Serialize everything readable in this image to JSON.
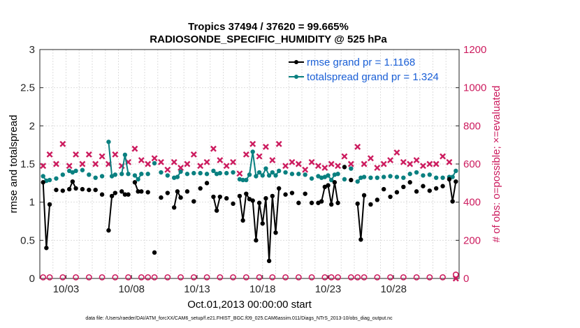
{
  "chart_data": {
    "type": "line",
    "title": "Tropics 37494 / 37620 = 99.665%",
    "subtitle": "RADIOSONDE_SPECIFIC_HUMIDITY @ 525 hPa",
    "xlabel": "Oct.01,2013 00:00:00 start",
    "ylabel": "rmse and totalspread",
    "y2label": "# of obs: o=possible; ×=evaluated",
    "footer": "data file: /Users/raeder/DAI/ATM_forcXX/CAM6_setup/f.e21.FHIST_BGC.f09_025.CAM6assim.011/Diags_NTrS_2013-10/obs_diag_output.nc",
    "xlim": [
      1,
      33
    ],
    "ylim": [
      0,
      3
    ],
    "y2lim": [
      0,
      1200
    ],
    "x_ticks": [
      3,
      8,
      13,
      18,
      23,
      28
    ],
    "x_tick_labels": [
      "10/03",
      "10/08",
      "10/13",
      "10/18",
      "10/23",
      "10/28"
    ],
    "y_ticks": [
      "0",
      "0.5",
      "1",
      "1.5",
      "2",
      "2.5",
      "3"
    ],
    "y2_ticks": [
      "0",
      "200",
      "400",
      "600",
      "800",
      "1000",
      "1200"
    ],
    "grid": true,
    "legend_position": "top-right",
    "series": [
      {
        "name": "rmse grand pr = 1.1168",
        "color": "#000000",
        "axis": "left",
        "x": [
          1.25,
          1.5,
          1.75,
          2.25,
          2.75,
          3.25,
          3.5,
          3.75,
          4.25,
          4.75,
          5.25,
          5.75,
          6.25,
          6.5,
          6.75,
          7.25,
          7.5,
          7.75,
          8.25,
          8.5,
          8.75,
          9.25,
          9.75,
          10.25,
          10.75,
          11.25,
          11.5,
          11.75,
          12.25,
          12.75,
          13.25,
          13.75,
          14.25,
          14.5,
          14.75,
          15.25,
          15.75,
          16.25,
          16.5,
          16.75,
          17.0,
          17.25,
          17.5,
          17.75,
          18.0,
          18.25,
          18.5,
          18.75,
          19.0,
          19.25,
          19.75,
          20.25,
          20.75,
          21.25,
          21.75,
          22.25,
          22.5,
          22.75,
          23.0,
          23.25,
          23.5,
          23.75,
          24.25,
          24.75,
          25.25,
          25.5,
          25.75,
          26.25,
          26.75,
          27.25,
          27.75,
          28.25,
          28.75,
          29.25,
          29.75,
          30.25,
          30.75,
          31.25,
          31.75,
          32.25,
          32.5,
          32.75
        ],
        "values": [
          1.26,
          0.4,
          0.97,
          1.16,
          1.15,
          1.17,
          1.27,
          1.18,
          1.17,
          1.16,
          1.16,
          1.1,
          0.63,
          1.08,
          1.12,
          1.14,
          1.1,
          1.1,
          1.26,
          1.14,
          1.14,
          1.13,
          0.34,
          1.06,
          1.12,
          0.93,
          1.14,
          1.06,
          1.14,
          1.01,
          1.18,
          1.25,
          1.07,
          0.89,
          1.07,
          1.05,
          0.98,
          1.08,
          0.76,
          1.11,
          1.04,
          1.02,
          0.5,
          0.99,
          0.72,
          1.05,
          0.23,
          1.08,
          0.6,
          1.18,
          1.1,
          1.12,
          0.99,
          1.11,
          0.99,
          0.99,
          1.01,
          1.2,
          1.22,
          0.97,
          1.26,
          0.99,
          1.46,
          1.29,
          0.98,
          0.51,
          1.09,
          0.97,
          1.03,
          1.17,
          1.07,
          1.13,
          1.2,
          1.26,
          1.14,
          1.21,
          1.15,
          1.18,
          1.21,
          1.3,
          1.01,
          1.27
        ]
      },
      {
        "name": "totalspread grand pr = 1.324",
        "color": "#0a8080",
        "axis": "left",
        "x": [
          1.25,
          1.5,
          1.75,
          2.25,
          2.75,
          3.25,
          3.5,
          3.75,
          4.25,
          4.75,
          5.25,
          5.75,
          6.25,
          6.5,
          6.75,
          7.25,
          7.5,
          7.75,
          8.25,
          8.5,
          8.75,
          9.25,
          9.75,
          10.25,
          10.75,
          11.25,
          11.5,
          11.75,
          12.25,
          12.75,
          13.25,
          13.75,
          14.25,
          14.5,
          14.75,
          15.25,
          15.75,
          16.25,
          16.5,
          16.75,
          17.0,
          17.25,
          17.5,
          17.75,
          18.0,
          18.25,
          18.5,
          18.75,
          19.0,
          19.25,
          19.75,
          20.25,
          20.75,
          21.25,
          21.75,
          22.25,
          22.5,
          22.75,
          23.0,
          23.25,
          23.5,
          23.75,
          24.25,
          24.75,
          25.25,
          25.5,
          25.75,
          26.25,
          26.75,
          27.25,
          27.75,
          28.25,
          28.75,
          29.25,
          29.75,
          30.25,
          30.75,
          31.25,
          31.75,
          32.25,
          32.5,
          32.75
        ],
        "values": [
          1.34,
          1.28,
          1.29,
          1.31,
          1.36,
          1.41,
          1.39,
          1.41,
          1.42,
          1.36,
          1.32,
          1.34,
          1.79,
          1.34,
          1.36,
          1.37,
          1.62,
          1.37,
          1.35,
          1.3,
          1.37,
          1.37,
          1.51,
          1.39,
          1.35,
          1.32,
          1.33,
          1.4,
          1.37,
          1.38,
          1.38,
          1.37,
          1.41,
          1.37,
          1.38,
          1.38,
          1.39,
          1.3,
          1.29,
          1.29,
          1.36,
          1.66,
          1.34,
          1.39,
          1.35,
          1.44,
          1.35,
          1.39,
          1.35,
          1.41,
          1.39,
          1.37,
          1.37,
          1.36,
          1.31,
          1.34,
          1.32,
          1.33,
          1.35,
          1.29,
          1.36,
          1.37,
          1.3,
          1.44,
          1.27,
          1.32,
          1.33,
          1.32,
          1.32,
          1.33,
          1.34,
          1.33,
          1.32,
          1.37,
          1.39,
          1.35,
          1.36,
          1.32,
          1.32,
          1.33,
          1.33,
          1.41
        ]
      },
      {
        "name": "obs possible",
        "color": "#cc1b5e",
        "axis": "right",
        "x": [
          1.25,
          1.75,
          2.75,
          3.75,
          4.75,
          5.75,
          6.75,
          7.75,
          8.75,
          9.25,
          9.75,
          10.75,
          11.75,
          12.75,
          13.75,
          14.75,
          15.75,
          16.75,
          17.75,
          18.75,
          19.75,
          20.75,
          21.75,
          22.75,
          23.25,
          23.75,
          24.75,
          25.25,
          25.75,
          26.75,
          27.75,
          28.75,
          29.75,
          30.75,
          31.75,
          32.75
        ],
        "values": [
          6,
          6,
          6,
          6,
          6,
          6,
          6,
          6,
          6,
          6,
          6,
          6,
          6,
          6,
          6,
          6,
          6,
          6,
          6,
          6,
          6,
          6,
          6,
          6,
          6,
          6,
          6,
          6,
          6,
          6,
          6,
          6,
          6,
          6,
          6,
          20
        ]
      },
      {
        "name": "obs evaluated",
        "color": "#cc1b5e",
        "axis": "right",
        "x": [
          1.25,
          1.75,
          2.25,
          2.75,
          3.25,
          3.75,
          4.25,
          4.75,
          5.25,
          5.75,
          6.25,
          6.75,
          7.25,
          7.75,
          8.25,
          8.75,
          9.25,
          9.75,
          10.25,
          10.75,
          11.25,
          11.75,
          12.25,
          12.75,
          13.25,
          13.75,
          14.25,
          14.75,
          15.25,
          15.75,
          16.25,
          16.75,
          17.25,
          17.75,
          18.25,
          18.75,
          19.25,
          19.75,
          20.25,
          20.75,
          21.25,
          21.75,
          22.25,
          22.75,
          23.25,
          23.75,
          24.25,
          24.75,
          25.25,
          25.75,
          26.25,
          26.75,
          27.25,
          27.75,
          28.25,
          28.75,
          29.25,
          29.75,
          30.25,
          30.75,
          31.25,
          31.75,
          32.25,
          32.75
        ],
        "values": [
          590,
          650,
          600,
          705,
          590,
          650,
          600,
          650,
          600,
          640,
          600,
          650,
          590,
          610,
          680,
          620,
          600,
          630,
          610,
          570,
          610,
          580,
          600,
          650,
          590,
          610,
          680,
          620,
          590,
          610,
          550,
          650,
          705,
          640,
          690,
          620,
          705,
          590,
          610,
          600,
          570,
          610,
          590,
          580,
          600,
          590,
          640,
          600,
          690,
          600,
          630,
          580,
          600,
          620,
          660,
          610,
          600,
          620,
          590,
          600,
          600,
          640,
          610,
          0
        ]
      }
    ]
  }
}
